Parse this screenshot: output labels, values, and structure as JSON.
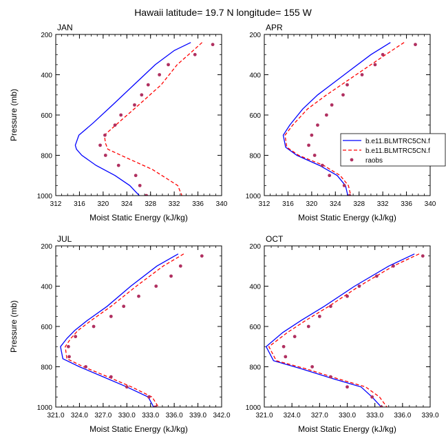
{
  "figure_title": "Hawaii  latitude= 19.7 N longitude= 155 W",
  "legend": {
    "entries": [
      {
        "label": "b.e11.BLMTRC5CN.f",
        "style": "solid",
        "color": "#0000ff"
      },
      {
        "label": "b.e11.BLMTRC5CN.f",
        "style": "dashed",
        "color": "#ff0000"
      },
      {
        "label": "raobs",
        "style": "dot",
        "color": "#b03060"
      }
    ]
  },
  "chart_data": [
    {
      "type": "line",
      "panel": "JAN",
      "xlabel": "Moist Static Energy (kJ/kg)",
      "ylabel": "Pressure (mb)",
      "xlim": [
        312,
        340
      ],
      "ylim": [
        1000,
        200
      ],
      "xticks": [
        312,
        316,
        320,
        324,
        328,
        332,
        336,
        340
      ],
      "xtick_labels": [
        "312",
        "316",
        "320",
        "324",
        "328",
        "332",
        "336",
        "340"
      ],
      "yticks": [
        200,
        400,
        600,
        800,
        1000
      ],
      "series": [
        {
          "name": "b.e11.BLMTRC5CN.f",
          "style": "solid",
          "points": [
            [
              334.8,
              240
            ],
            [
              332.0,
              280
            ],
            [
              328.8,
              350
            ],
            [
              325.2,
              450
            ],
            [
              321.6,
              550
            ],
            [
              318.3,
              640
            ],
            [
              315.9,
              700
            ],
            [
              315.3,
              750
            ],
            [
              315.5,
              770
            ],
            [
              316.4,
              800
            ],
            [
              318.8,
              850
            ],
            [
              322.0,
              900
            ],
            [
              324.5,
              950
            ],
            [
              326.1,
              1000
            ]
          ]
        },
        {
          "name": "b.e11.BLMTRC5CN.f",
          "style": "dashed",
          "points": [
            [
              336.7,
              240
            ],
            [
              335.2,
              280
            ],
            [
              332.5,
              350
            ],
            [
              329.8,
              450
            ],
            [
              326.0,
              550
            ],
            [
              322.5,
              640
            ],
            [
              320.2,
              700
            ],
            [
              320.4,
              740
            ],
            [
              320.8,
              770
            ],
            [
              324.5,
              820
            ],
            [
              328.3,
              870
            ],
            [
              332.6,
              950
            ],
            [
              333.3,
              1000
            ]
          ]
        },
        {
          "name": "raobs",
          "style": "dot",
          "points": [
            [
              338.5,
              250
            ],
            [
              335.5,
              300
            ],
            [
              331.0,
              350
            ],
            [
              329.5,
              400
            ],
            [
              327.6,
              450
            ],
            [
              326.5,
              500
            ],
            [
              325.3,
              550
            ],
            [
              323.0,
              600
            ],
            [
              322.0,
              650
            ],
            [
              320.3,
              700
            ],
            [
              319.5,
              750
            ],
            [
              320.4,
              800
            ],
            [
              322.6,
              850
            ],
            [
              325.5,
              900
            ],
            [
              326.2,
              950
            ],
            [
              327.3,
              1000
            ]
          ]
        }
      ]
    },
    {
      "type": "line",
      "panel": "APR",
      "xlabel": "Moist Static Energy (kJ/kg)",
      "ylabel": "",
      "xlim": [
        312,
        340
      ],
      "ylim": [
        1000,
        200
      ],
      "xticks": [
        312,
        316,
        320,
        324,
        328,
        332,
        336,
        340
      ],
      "xtick_labels": [
        "312",
        "316",
        "320",
        "324",
        "328",
        "332",
        "336",
        "340"
      ],
      "yticks": [
        200,
        400,
        600,
        800,
        1000
      ],
      "series": [
        {
          "name": "b.e11.BLMTRC5CN.f",
          "style": "solid",
          "points": [
            [
              333.3,
              240
            ],
            [
              330.0,
              300
            ],
            [
              325.5,
              400
            ],
            [
              321.0,
              500
            ],
            [
              318.5,
              570
            ],
            [
              316.3,
              650
            ],
            [
              315.2,
              700
            ],
            [
              315.6,
              760
            ],
            [
              317.5,
              800
            ],
            [
              321.3,
              850
            ],
            [
              324.3,
              900
            ],
            [
              325.7,
              950
            ],
            [
              326.1,
              1000
            ]
          ]
        },
        {
          "name": "b.e11.BLMTRC5CN.f",
          "style": "dashed",
          "points": [
            [
              335.6,
              240
            ],
            [
              332.5,
              300
            ],
            [
              327.5,
              400
            ],
            [
              322.5,
              500
            ],
            [
              319.3,
              570
            ],
            [
              316.8,
              650
            ],
            [
              315.5,
              700
            ],
            [
              315.8,
              760
            ],
            [
              317.8,
              800
            ],
            [
              322.0,
              850
            ],
            [
              324.8,
              900
            ],
            [
              326.2,
              950
            ],
            [
              326.6,
              1000
            ]
          ]
        },
        {
          "name": "raobs",
          "style": "dot",
          "points": [
            [
              337.5,
              250
            ],
            [
              332.0,
              300
            ],
            [
              330.7,
              350
            ],
            [
              328.5,
              400
            ],
            [
              326.0,
              450
            ],
            [
              325.3,
              500
            ],
            [
              323.4,
              550
            ],
            [
              322.5,
              600
            ],
            [
              321.0,
              650
            ],
            [
              320.0,
              700
            ],
            [
              319.5,
              750
            ],
            [
              320.5,
              800
            ],
            [
              321.8,
              850
            ],
            [
              323.0,
              900
            ],
            [
              325.5,
              950
            ],
            [
              326.4,
              1000
            ]
          ]
        }
      ]
    },
    {
      "type": "line",
      "panel": "JUL",
      "xlabel": "Moist Static Energy (kJ/kg)",
      "ylabel": "Pressure (mb)",
      "xlim": [
        321,
        342
      ],
      "ylim": [
        1000,
        200
      ],
      "xticks": [
        321,
        324,
        327,
        330,
        333,
        336,
        339,
        342
      ],
      "xtick_labels": [
        "321.0",
        "324.0",
        "327.0",
        "330.0",
        "333.0",
        "336.0",
        "339.0",
        "342.0"
      ],
      "yticks": [
        200,
        400,
        600,
        800,
        1000
      ],
      "series": [
        {
          "name": "b.e11.BLMTRC5CN.f",
          "style": "solid",
          "points": [
            [
              336.5,
              240
            ],
            [
              333.8,
              300
            ],
            [
              330.5,
              400
            ],
            [
              327.5,
              500
            ],
            [
              325.0,
              570
            ],
            [
              323.4,
              620
            ],
            [
              322.4,
              660
            ],
            [
              321.6,
              700
            ],
            [
              321.9,
              760
            ],
            [
              324.0,
              800
            ],
            [
              327.0,
              850
            ],
            [
              330.0,
              900
            ],
            [
              332.7,
              950
            ],
            [
              333.4,
              1000
            ]
          ]
        },
        {
          "name": "b.e11.BLMTRC5CN.f",
          "style": "dashed",
          "points": [
            [
              337.2,
              240
            ],
            [
              334.6,
              300
            ],
            [
              331.2,
              400
            ],
            [
              328.0,
              500
            ],
            [
              325.5,
              570
            ],
            [
              323.8,
              620
            ],
            [
              322.9,
              660
            ],
            [
              322.2,
              700
            ],
            [
              322.4,
              760
            ],
            [
              324.5,
              800
            ],
            [
              327.6,
              850
            ],
            [
              330.6,
              900
            ],
            [
              333.2,
              950
            ],
            [
              334.0,
              1000
            ]
          ]
        },
        {
          "name": "raobs",
          "style": "dot",
          "points": [
            [
              339.5,
              250
            ],
            [
              336.8,
              300
            ],
            [
              335.6,
              350
            ],
            [
              333.7,
              400
            ],
            [
              331.5,
              450
            ],
            [
              329.6,
              500
            ],
            [
              328.0,
              550
            ],
            [
              325.8,
              600
            ],
            [
              323.5,
              650
            ],
            [
              322.6,
              700
            ],
            [
              322.7,
              750
            ],
            [
              324.8,
              800
            ],
            [
              328.0,
              850
            ],
            [
              330.0,
              900
            ],
            [
              332.8,
              950
            ],
            [
              333.6,
              1000
            ]
          ]
        }
      ]
    },
    {
      "type": "line",
      "panel": "OCT",
      "xlabel": "Moist Static Energy (kJ/kg)",
      "ylabel": "",
      "xlim": [
        321,
        339
      ],
      "ylim": [
        1000,
        200
      ],
      "xticks": [
        321,
        324,
        327,
        330,
        333,
        336,
        339
      ],
      "xtick_labels": [
        "321.0",
        "324.0",
        "327.0",
        "330.0",
        "333.0",
        "336.0",
        "339.0"
      ],
      "yticks": [
        200,
        400,
        600,
        800,
        1000
      ],
      "series": [
        {
          "name": "b.e11.BLMTRC5CN.f",
          "style": "solid",
          "points": [
            [
              337.3,
              240
            ],
            [
              334.5,
              300
            ],
            [
              330.8,
              400
            ],
            [
              327.5,
              500
            ],
            [
              325.0,
              570
            ],
            [
              323.0,
              630
            ],
            [
              321.2,
              700
            ],
            [
              322.0,
              770
            ],
            [
              325.0,
              810
            ],
            [
              328.5,
              860
            ],
            [
              331.5,
              900
            ],
            [
              332.7,
              950
            ],
            [
              333.7,
              1000
            ]
          ]
        },
        {
          "name": "b.e11.BLMTRC5CN.f",
          "style": "dashed",
          "points": [
            [
              337.8,
              240
            ],
            [
              335.0,
              300
            ],
            [
              331.3,
              400
            ],
            [
              328.0,
              500
            ],
            [
              325.5,
              570
            ],
            [
              323.5,
              630
            ],
            [
              321.5,
              700
            ],
            [
              322.3,
              770
            ],
            [
              325.5,
              810
            ],
            [
              329.0,
              860
            ],
            [
              332.0,
              900
            ],
            [
              333.5,
              950
            ],
            [
              334.3,
              1000
            ]
          ]
        },
        {
          "name": "raobs",
          "style": "dot",
          "points": [
            [
              338.2,
              250
            ],
            [
              335.0,
              300
            ],
            [
              333.2,
              350
            ],
            [
              331.3,
              400
            ],
            [
              330.0,
              450
            ],
            [
              328.2,
              500
            ],
            [
              327.0,
              550
            ],
            [
              325.8,
              600
            ],
            [
              324.3,
              650
            ],
            [
              323.1,
              700
            ],
            [
              323.3,
              750
            ],
            [
              326.2,
              800
            ],
            [
              328.2,
              850
            ],
            [
              330.0,
              900
            ],
            [
              332.7,
              950
            ],
            [
              333.7,
              1000
            ]
          ]
        }
      ]
    }
  ]
}
